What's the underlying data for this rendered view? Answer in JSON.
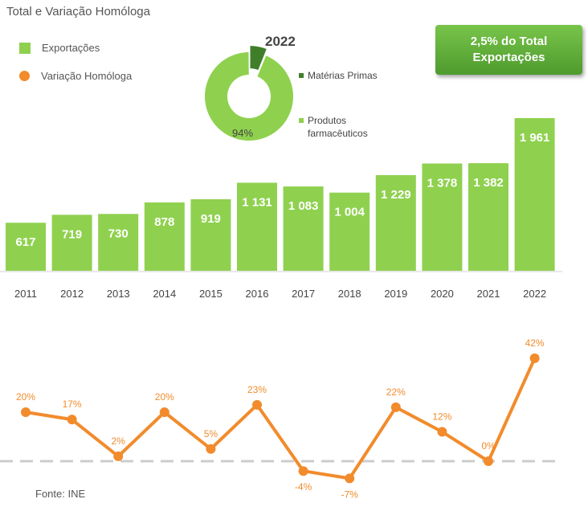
{
  "header": {
    "title": "Total e Variação Homóloga"
  },
  "legend": {
    "exports_label": "Exportações",
    "variation_label": "Variação Homóloga"
  },
  "callout": {
    "text": "2,5% do Total Exportações"
  },
  "source": "Fonte: INE",
  "colors": {
    "bar": "#8fd14f",
    "line": "#f28b2c",
    "donut_light": "#8fd14f",
    "donut_dark": "#3f7f2a"
  },
  "chart_data": [
    {
      "type": "bar",
      "title": "",
      "categories": [
        "2011",
        "2012",
        "2013",
        "2014",
        "2015",
        "2016",
        "2017",
        "2018",
        "2019",
        "2020",
        "2021",
        "2022"
      ],
      "series": [
        {
          "name": "Exportações",
          "values": [
            617,
            719,
            730,
            878,
            919,
            1131,
            1083,
            1004,
            1229,
            1378,
            1382,
            1961
          ]
        }
      ],
      "data_labels": [
        "617",
        "719",
        "730",
        "878",
        "919",
        "1 131",
        "1 083",
        "1 004",
        "1 229",
        "1 378",
        "1 382",
        "1 961"
      ]
    },
    {
      "type": "line",
      "categories": [
        "2011",
        "2012",
        "2013",
        "2014",
        "2015",
        "2016",
        "2017",
        "2018",
        "2019",
        "2020",
        "2021",
        "2022"
      ],
      "series": [
        {
          "name": "Variação Homóloga",
          "values": [
            20,
            17,
            2,
            20,
            5,
            23,
            -4,
            -7,
            22,
            12,
            0,
            42
          ]
        }
      ],
      "data_labels": [
        "20%",
        "17%",
        "2%",
        "20%",
        "5%",
        "23%",
        "-4%",
        "-7%",
        "22%",
        "12%",
        "0%",
        "42%"
      ],
      "reference_line": 0
    },
    {
      "type": "pie",
      "title": "2022",
      "labels": [
        "Matérias Primas",
        "Produtos farmacêuticos"
      ],
      "values": [
        6,
        94
      ],
      "data_labels": [
        "",
        "94%"
      ]
    }
  ]
}
